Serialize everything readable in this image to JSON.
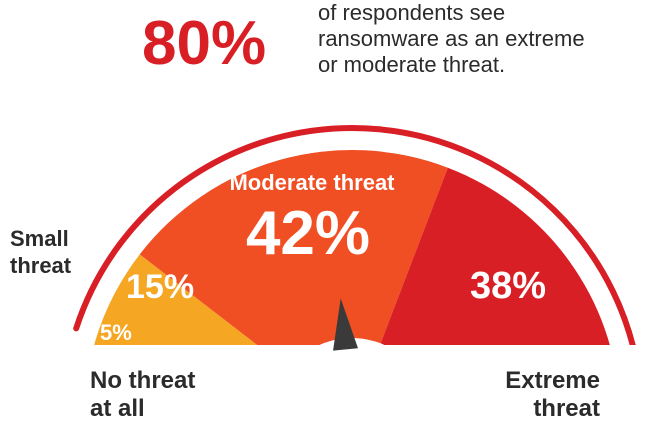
{
  "headline": {
    "percent": "80%",
    "text_lines": [
      "of respondents see",
      "ransomware as an extreme",
      "or moderate threat."
    ]
  },
  "colors": {
    "no_threat": "#0d2240",
    "small_threat": "#f5a623",
    "moderate_threat": "#f04e23",
    "extreme_threat": "#d91f26",
    "accent_red": "#d91f26",
    "needle": "#3a3a3a",
    "text_dark": "#2b2b2b"
  },
  "chart_data": {
    "type": "pie",
    "subtype": "semicircle-gauge",
    "slices": [
      {
        "label": "No threat at all",
        "value": 5,
        "value_label": "5%"
      },
      {
        "label": "Small threat",
        "value": 15,
        "value_label": "15%"
      },
      {
        "label": "Moderate threat",
        "value": 42,
        "value_label": "42%"
      },
      {
        "label": "Extreme threat",
        "value": 38,
        "value_label": "38%"
      }
    ],
    "needle_value": 42,
    "outer_labels": {
      "small_threat": [
        "Small",
        "threat"
      ],
      "no_threat": [
        "No threat",
        "at all"
      ],
      "extreme_threat": [
        "Extreme",
        "threat"
      ],
      "moderate_threat": "Moderate threat"
    }
  }
}
